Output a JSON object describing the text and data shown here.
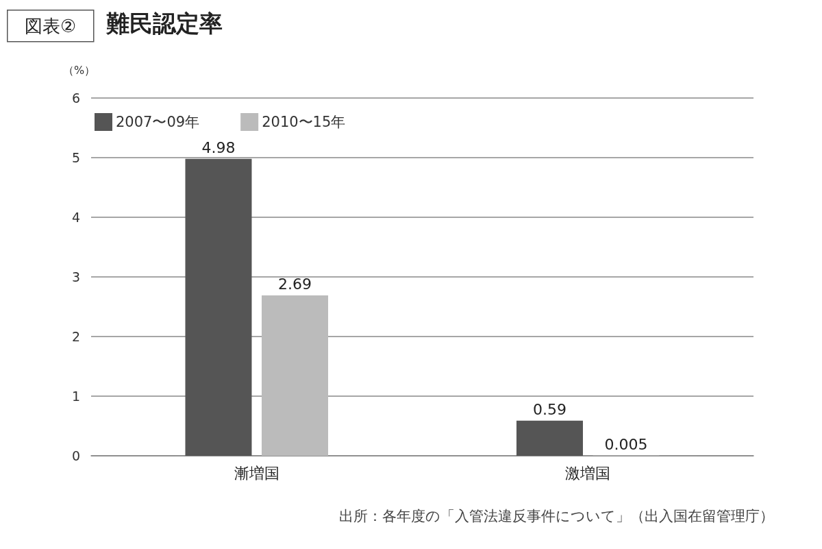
{
  "chart_data": {
    "type": "bar",
    "title": "難民認定率",
    "ylabel": "（%）",
    "categories": [
      "漸増国",
      "激増国"
    ],
    "series": [
      {
        "name": "2007〜09年",
        "color": "#555555",
        "values": [
          4.98,
          0.59
        ]
      },
      {
        "name": "2010〜15年",
        "color": "#bbbbbb",
        "values": [
          2.69,
          0.005
        ]
      }
    ],
    "ylim": [
      0,
      6
    ],
    "yticks": [
      0,
      1,
      2,
      3,
      4,
      5,
      6
    ],
    "grid": "y",
    "legend": "top left",
    "data_labels": true,
    "annotations": [
      "図表②",
      "出所：各年度の「入管法違反事件について」（出入国在留管理庁）"
    ]
  }
}
